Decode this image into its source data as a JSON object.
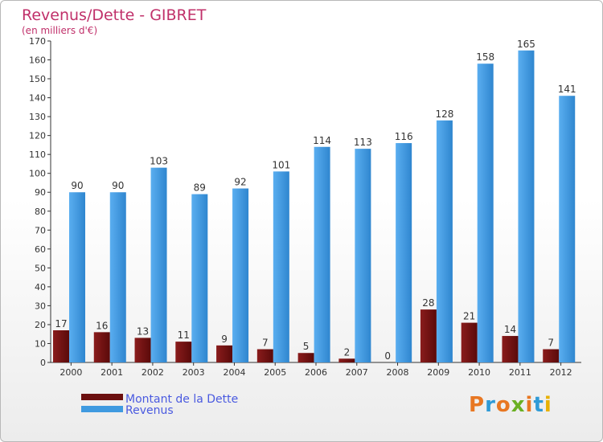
{
  "header": {
    "title": "Revenus/Dette - GIBRET",
    "subtitle": "(en milliers d'€)"
  },
  "logo": {
    "text": "Proxiti",
    "colors": [
      "#e87722",
      "#2f9ad6",
      "#e87722",
      "#6ab023",
      "#e87722",
      "#2f9ad6",
      "#e8b100"
    ]
  },
  "colors": {
    "debt": "#6b0f0f",
    "revenue": "#3f9ae0",
    "title": "#c0306a",
    "legend_text": "#4a5ae0"
  },
  "chart_data": {
    "type": "bar",
    "title": "Revenus/Dette - GIBRET",
    "subtitle": "(en milliers d'€)",
    "categories": [
      "2000",
      "2001",
      "2002",
      "2003",
      "2004",
      "2005",
      "2006",
      "2007",
      "2008",
      "2009",
      "2010",
      "2011",
      "2012"
    ],
    "series": [
      {
        "name": "Montant de la Dette",
        "values": [
          17,
          16,
          13,
          11,
          9,
          7,
          5,
          2,
          0,
          28,
          21,
          14,
          7
        ]
      },
      {
        "name": "Revenus",
        "values": [
          90,
          90,
          103,
          89,
          92,
          101,
          114,
          113,
          116,
          128,
          158,
          165,
          141
        ]
      }
    ],
    "yticks": [
      0,
      10,
      20,
      30,
      40,
      50,
      60,
      70,
      80,
      90,
      100,
      110,
      120,
      130,
      140,
      150,
      160,
      170
    ],
    "ylim": [
      0,
      170
    ],
    "grid": false,
    "legend_position": "bottom-left"
  }
}
